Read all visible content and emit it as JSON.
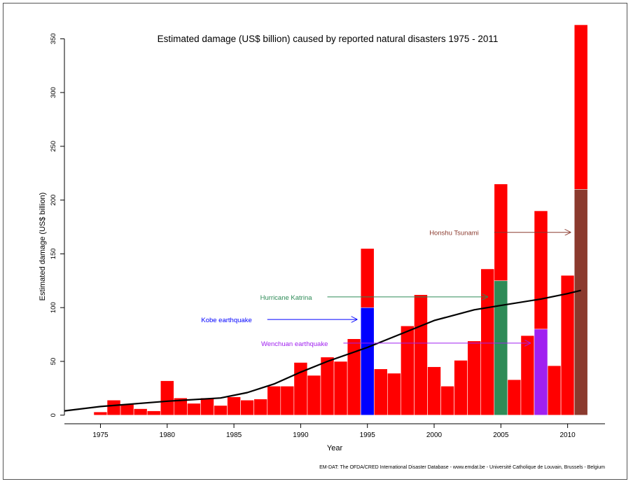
{
  "chart_data": {
    "type": "bar",
    "title": "Estimated damage (US$ billion) caused by reported natural disasters 1975 - 2011",
    "xlabel": "Year",
    "ylabel": "Estimated damage (US$ billion)",
    "xlim": [
      1972.3,
      2012.8
    ],
    "ylim": [
      -8,
      360
    ],
    "x_ticks": [
      1975,
      1980,
      1985,
      1990,
      1995,
      2000,
      2005,
      2010
    ],
    "y_ticks": [
      0,
      50,
      100,
      150,
      200,
      250,
      300,
      350
    ],
    "grid": false,
    "bar_color": "#ff0000",
    "years": [
      1975,
      1976,
      1977,
      1978,
      1979,
      1980,
      1981,
      1982,
      1983,
      1984,
      1985,
      1986,
      1987,
      1988,
      1989,
      1990,
      1991,
      1992,
      1993,
      1994,
      1995,
      1996,
      1997,
      1998,
      1999,
      2000,
      2001,
      2002,
      2003,
      2004,
      2005,
      2006,
      2007,
      2008,
      2009,
      2010,
      2011
    ],
    "values": [
      3,
      14,
      10,
      6,
      4,
      32,
      16,
      11,
      16,
      9,
      17,
      14,
      15,
      27,
      27,
      49,
      37,
      54,
      50,
      71,
      155,
      43,
      39,
      83,
      112,
      45,
      27,
      51,
      69,
      136,
      215,
      33,
      74,
      190,
      46,
      130,
      363
    ],
    "highlights": [
      {
        "year": 1995,
        "value": 100,
        "color": "#0000ff",
        "label": "Kobe earthquake"
      },
      {
        "year": 2005,
        "value": 125,
        "color": "#2e8b57",
        "label": "Hurricane Katrina"
      },
      {
        "year": 2008,
        "value": 80,
        "color": "#a020f0",
        "label": "Wenchuan earthquake"
      },
      {
        "year": 2011,
        "value": 210,
        "color": "#8b3a2e",
        "label": "Honshu Tsunami"
      }
    ],
    "trend": {
      "color": "#000000",
      "points": [
        [
          1972.3,
          4
        ],
        [
          1975,
          8
        ],
        [
          1980,
          13
        ],
        [
          1984,
          16
        ],
        [
          1986,
          21
        ],
        [
          1988,
          29
        ],
        [
          1990,
          40
        ],
        [
          1992,
          50
        ],
        [
          1995,
          63
        ],
        [
          1998,
          78
        ],
        [
          2000,
          88
        ],
        [
          2003,
          98
        ],
        [
          2005,
          102
        ],
        [
          2008,
          108
        ],
        [
          2010,
          113
        ],
        [
          2011,
          116
        ]
      ]
    },
    "annotations": [
      {
        "text": "Honshu Tsunami",
        "x_start": 2004.5,
        "x_end": 2010.2,
        "y": 170,
        "color": "#8b3a2e"
      },
      {
        "text": "Hurricane Katrina",
        "x_start": 1992.0,
        "x_end": 2004.0,
        "y": 110,
        "color": "#2e8b57"
      },
      {
        "text": "Kobe earthquake",
        "x_start": 1987.5,
        "x_end": 1994.2,
        "y": 89,
        "color": "#0000ff"
      },
      {
        "text": "Wenchuan earthquake",
        "x_start": 1993.2,
        "x_end": 2007.2,
        "y": 67,
        "color": "#a020f0"
      }
    ]
  },
  "source_note": "EM-DAT: The OFDA/CRED International Disaster Database - www.emdat.be - Université Catholique de Louvain, Brussels - Belgium"
}
